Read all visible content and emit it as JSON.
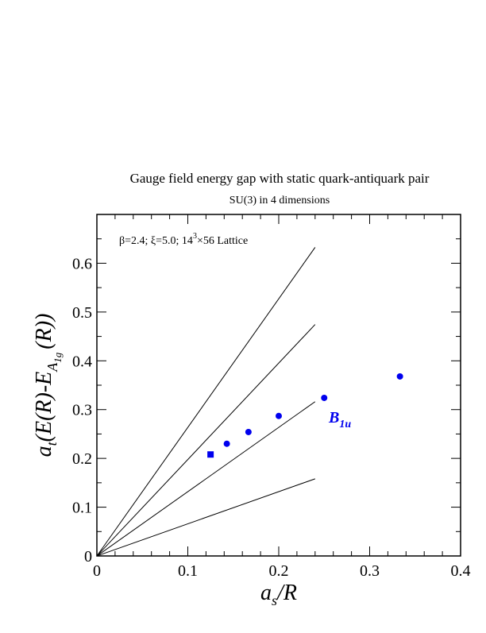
{
  "chart_data": {
    "type": "scatter",
    "title": "Gauge field energy gap with static quark-antiquark pair",
    "subtitle": "SU(3) in 4 dimensions",
    "xlabel": {
      "base": "a",
      "sub": "s",
      "rest": "/R"
    },
    "ylabel": {
      "prefix": "a",
      "prefix_sub": "t",
      "body": "(E(R)-E",
      "sub": "A",
      "subsub": "1g",
      "tail": "(R))"
    },
    "annotation": {
      "text_a": "β=2.4;  ξ=5.0;  14",
      "sup": "3",
      "text_b": "×56 Lattice"
    },
    "xlim": [
      0,
      0.4
    ],
    "ylim": [
      0,
      0.7
    ],
    "x_ticks": [
      0,
      0.1,
      0.2,
      0.3,
      0.4
    ],
    "x_tick_labels": [
      "0",
      "0.1",
      "0.2",
      "0.3",
      "0.4"
    ],
    "y_ticks": [
      0,
      0.1,
      0.2,
      0.3,
      0.4,
      0.5,
      0.6
    ],
    "y_tick_labels": [
      "0",
      "0.1",
      "0.2",
      "0.3",
      "0.4",
      "0.5",
      "0.6"
    ],
    "grid": false,
    "series": [
      {
        "name": "B1u",
        "label_base": "B",
        "label_sub": "1u",
        "color": "#0000ee",
        "points": [
          {
            "x": 0.125,
            "y": 0.208,
            "marker": "square"
          },
          {
            "x": 0.1429,
            "y": 0.23,
            "marker": "circle"
          },
          {
            "x": 0.1667,
            "y": 0.254,
            "marker": "circle"
          },
          {
            "x": 0.2,
            "y": 0.287,
            "marker": "circle"
          },
          {
            "x": 0.25,
            "y": 0.324,
            "marker": "circle"
          },
          {
            "x": 0.3333,
            "y": 0.368,
            "marker": "circle"
          }
        ]
      }
    ],
    "reference_lines": [
      {
        "slope": 2.6355,
        "x_end": 0.24
      },
      {
        "slope": 1.9766,
        "x_end": 0.24
      },
      {
        "slope": 1.3177,
        "x_end": 0.24
      },
      {
        "slope": 0.6589,
        "x_end": 0.24
      }
    ]
  }
}
